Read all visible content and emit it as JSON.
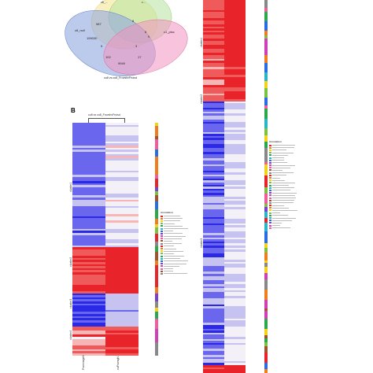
{
  "panel_a": {
    "sets": [
      {
        "name": "c8_null",
        "color": "#8fa6e0"
      },
      {
        "name": "c1_ptsc",
        "color": "#f291c0"
      },
      {
        "name": "",
        "color": "#f4e38a"
      },
      {
        "name": "",
        "color": "#b7e3a0"
      }
    ],
    "set_labels": {
      "left": "c8_null",
      "right": "c1_ptsc",
      "top_left": "c8_...",
      "top_right": "c..."
    },
    "regions": [
      "987",
      "199030",
      "8",
      "6",
      "9",
      "5",
      "3",
      "102",
      "17",
      "9949"
    ],
    "caption": "cu8 vs cu8_FruvshvFruisd"
  },
  "panel_b": {
    "label": "B",
    "title": "cu8 vs cu8_FruvshvFruisd",
    "cluster_labels": [
      "cluster1",
      "cluster2",
      "cluster3",
      "cluster4"
    ],
    "col_labels": [
      "FruvsnvgeN",
      "vuFruvsgN"
    ],
    "legend_title": "Annotation"
  },
  "panel_c": {
    "cluster_labels": [
      "cluster1",
      "cluster2",
      "cluster3"
    ],
    "legend_title": "Annotation"
  },
  "colors": {
    "deep_red": "#e8242a",
    "red": "#ef5a5a",
    "pink": "#f6b6b6",
    "white": "#f4f0f7",
    "lavender": "#c7c3f0",
    "blue": "#6a66ee",
    "deep_blue": "#2a2ae6"
  }
}
